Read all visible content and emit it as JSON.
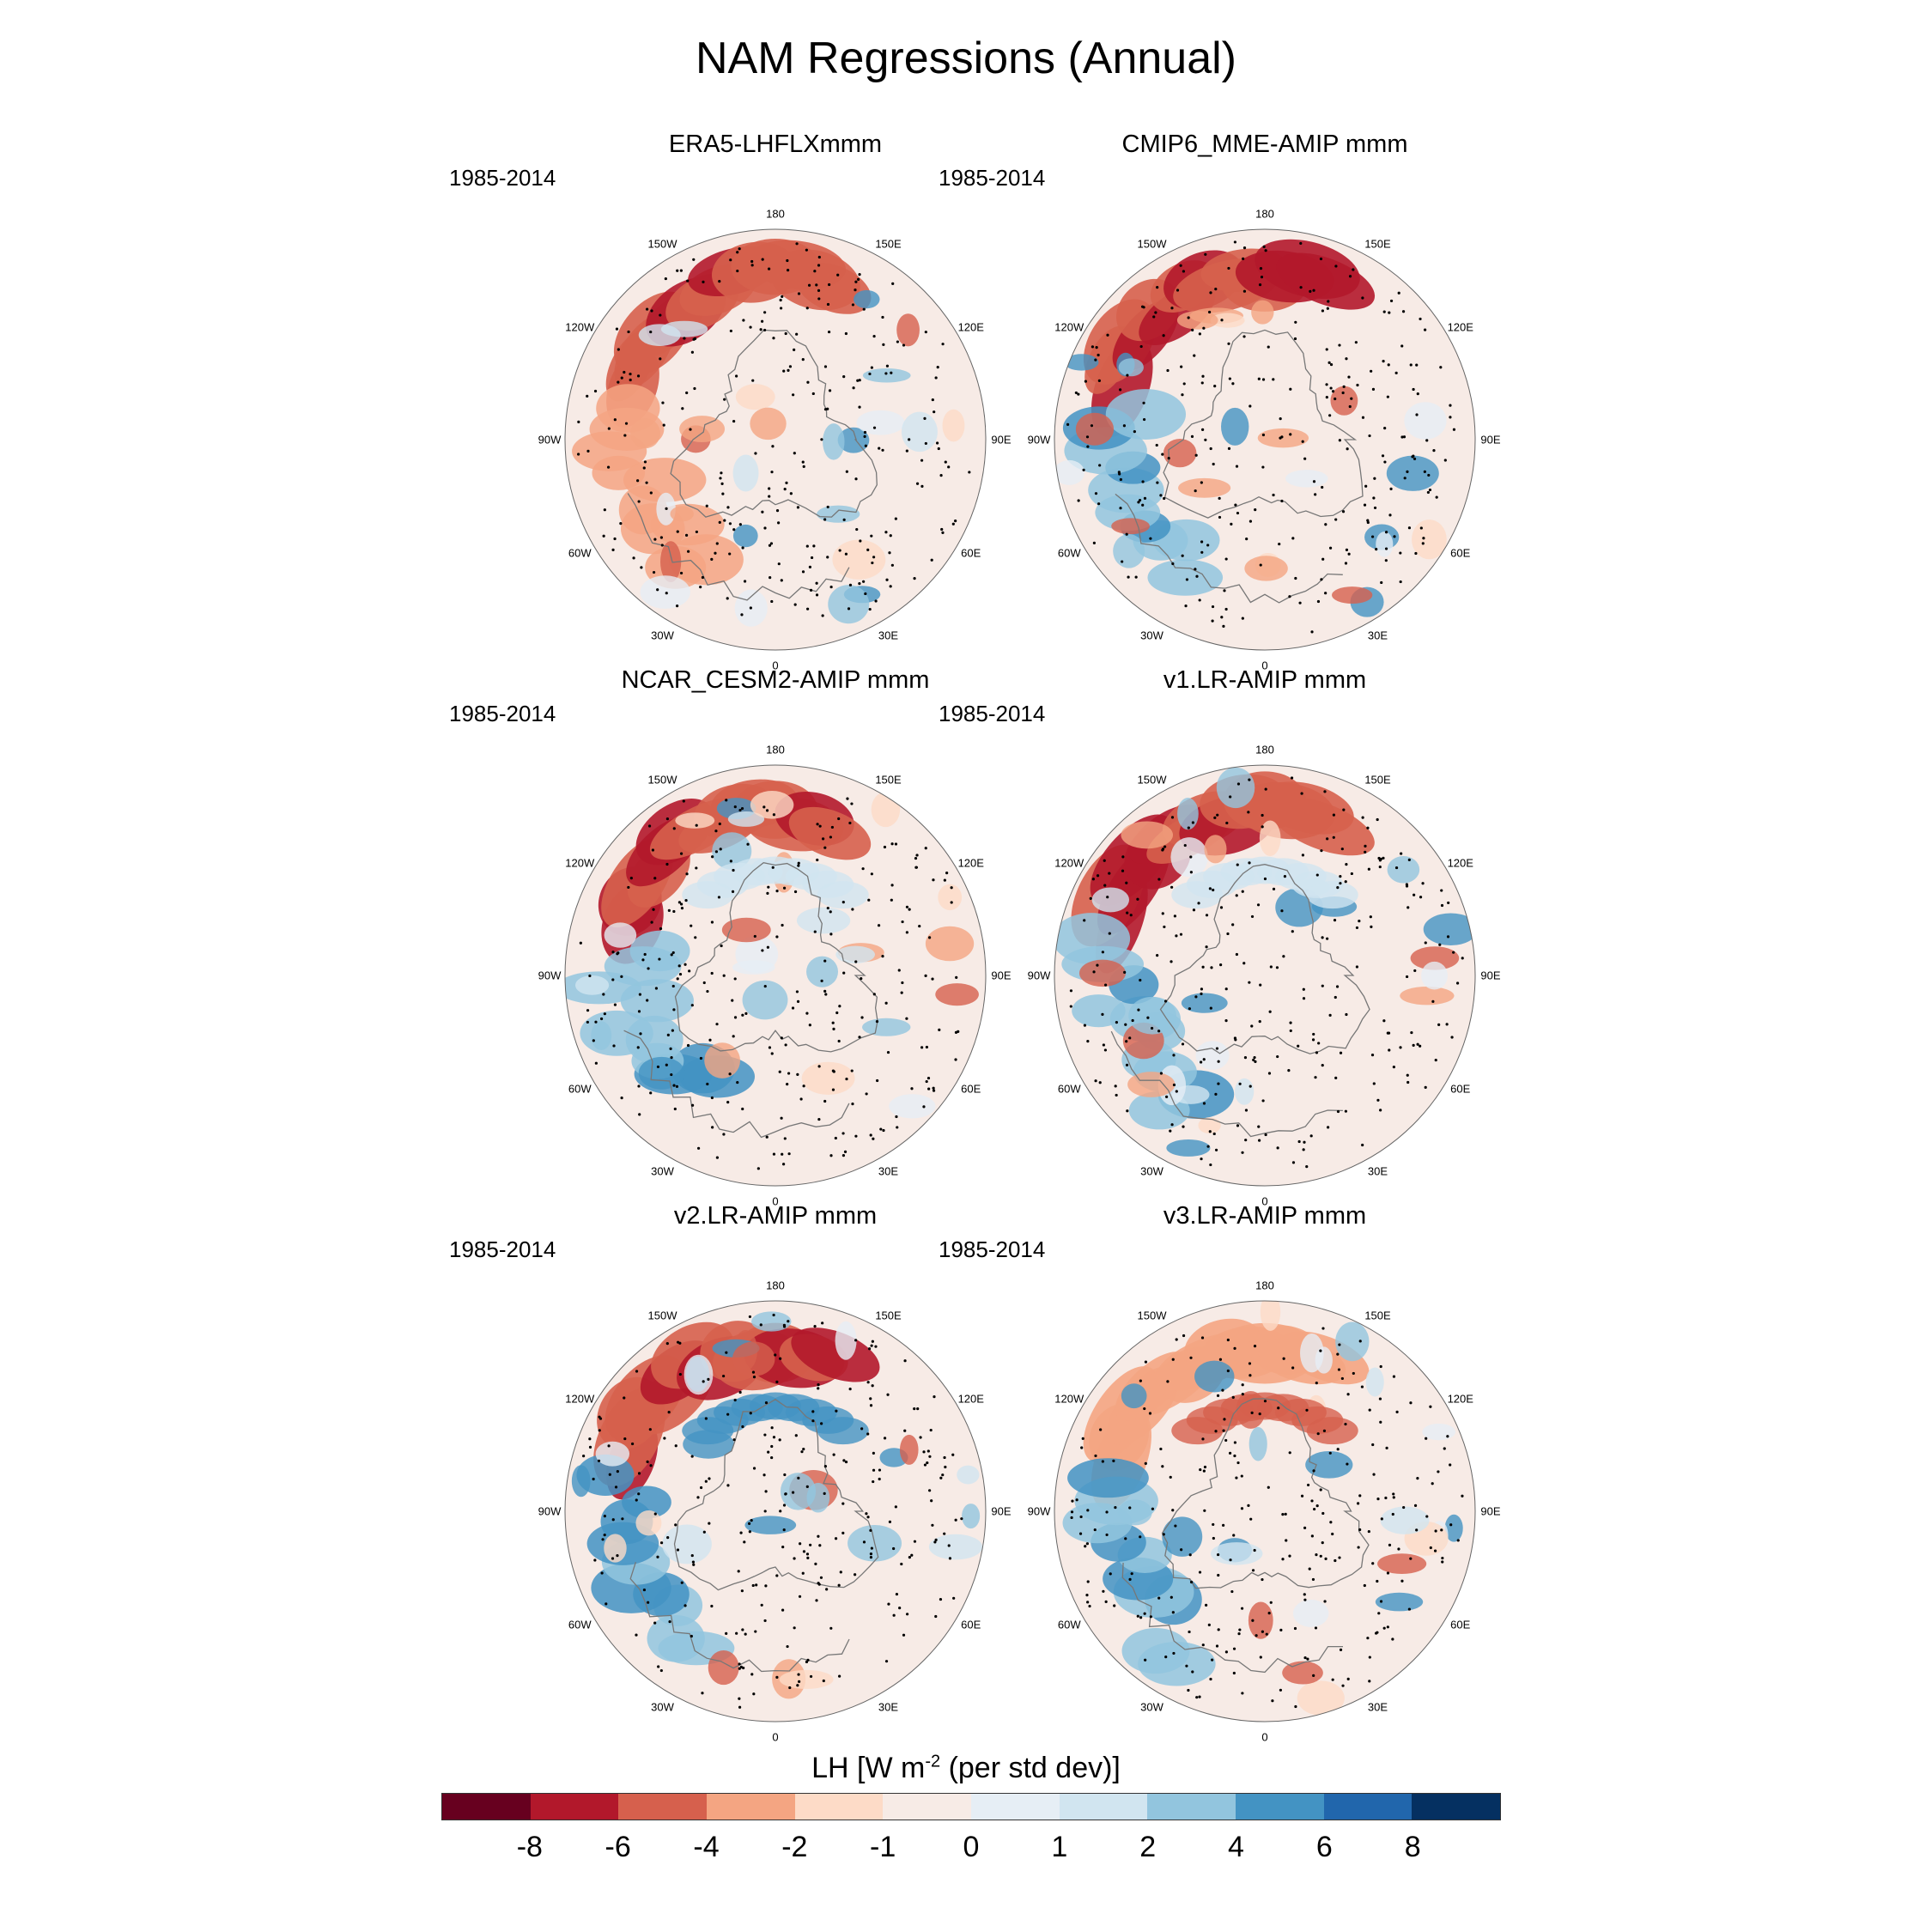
{
  "title": "NAM Regressions (Annual)",
  "chart_data": {
    "type": "heatmap",
    "projection": "north-polar-stereographic",
    "title": "NAM Regressions (Annual)",
    "longitude_labels": [
      "180",
      "150E",
      "120E",
      "90E",
      "60E",
      "30E",
      "0",
      "30W",
      "60W",
      "90W",
      "120W",
      "150W"
    ],
    "panels": [
      {
        "name": "ERA5-LHFLXmmm",
        "period": "1985-2014"
      },
      {
        "name": "CMIP6_MME-AMIP  mmm",
        "period": "1985-2014"
      },
      {
        "name": "NCAR_CESM2-AMIP  mmm",
        "period": "1985-2014"
      },
      {
        "name": "v1.LR-AMIP  mmm",
        "period": "1985-2014"
      },
      {
        "name": "v2.LR-AMIP  mmm",
        "period": "1985-2014"
      },
      {
        "name": "v3.LR-AMIP  mmm",
        "period": "1985-2014"
      }
    ],
    "colorbar": {
      "label_main": "LH [W m",
      "label_exp": "-2",
      "label_tail": " (per std dev)]",
      "levels": [
        "-8",
        "-6",
        "-4",
        "-2",
        "-1",
        "0",
        "1",
        "2",
        "4",
        "6",
        "8"
      ],
      "colors": [
        "#67001f",
        "#b2182b",
        "#d6604d",
        "#f4a582",
        "#fddbc7",
        "#f7ebe6",
        "#e6eef5",
        "#d1e5f0",
        "#92c5de",
        "#4393c3",
        "#2166ac",
        "#053061"
      ]
    }
  }
}
